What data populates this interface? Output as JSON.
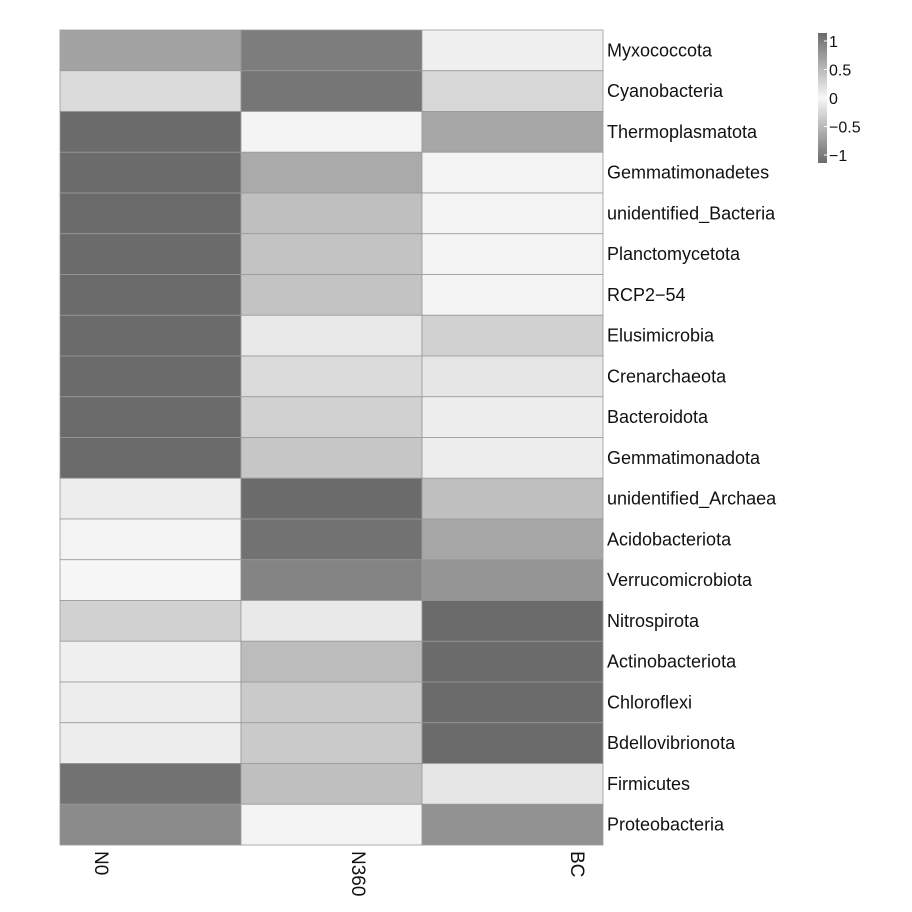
{
  "chart_data": {
    "type": "heatmap",
    "title": "",
    "xlabel": "",
    "ylabel": "",
    "columns": [
      "N0",
      "N360",
      "BC"
    ],
    "rows": [
      "Myxococcota",
      "Cyanobacteria",
      "Thermoplasmatota",
      "Gemmatimonadetes",
      "unidentified_Bacteria",
      "Planctomycetota",
      "RCP2−54",
      "Elusimicrobia",
      "Crenarchaeota",
      "Bacteroidota",
      "Gemmatimonadota",
      "unidentified_Archaea",
      "Acidobacteriota",
      "Verrucomicrobiota",
      "Nitrospirota",
      "Actinobacteriota",
      "Chloroflexi",
      "Bdellovibrionota",
      "Firmicutes",
      "Proteobacteria"
    ],
    "values": [
      [
        -0.2,
        -0.75,
        0.9
      ],
      [
        0.6,
        -0.85,
        0.55
      ],
      [
        -1.0,
        0.95,
        -0.15
      ],
      [
        -1.0,
        -0.1,
        0.95
      ],
      [
        -1.0,
        0.2,
        0.95
      ],
      [
        -1.0,
        0.25,
        0.95
      ],
      [
        -1.0,
        0.25,
        0.95
      ],
      [
        -1.0,
        0.8,
        0.45
      ],
      [
        -1.0,
        0.6,
        0.75
      ],
      [
        -1.0,
        0.45,
        0.85
      ],
      [
        -1.0,
        0.3,
        0.85
      ],
      [
        0.85,
        -1.0,
        0.2
      ],
      [
        0.95,
        -0.9,
        -0.15
      ],
      [
        1.0,
        -0.65,
        -0.4
      ],
      [
        0.45,
        0.8,
        -1.0
      ],
      [
        0.9,
        0.15,
        -1.0
      ],
      [
        0.85,
        0.35,
        -1.0
      ],
      [
        0.85,
        0.35,
        -1.0
      ],
      [
        -0.9,
        0.2,
        0.75
      ],
      [
        -0.55,
        0.95,
        -0.45
      ]
    ],
    "zlim": [
      -1,
      1
    ],
    "legend": {
      "position": "top-right",
      "ticks": [
        1,
        0.5,
        0,
        -0.5,
        -1
      ],
      "tick_labels": [
        "1",
        "0.5",
        "0",
        "−0.5",
        "−1"
      ]
    },
    "colors": {
      "low": "#6b6b6b",
      "high": "#f7f7f7",
      "cell_border": "#9a9a9a"
    }
  }
}
